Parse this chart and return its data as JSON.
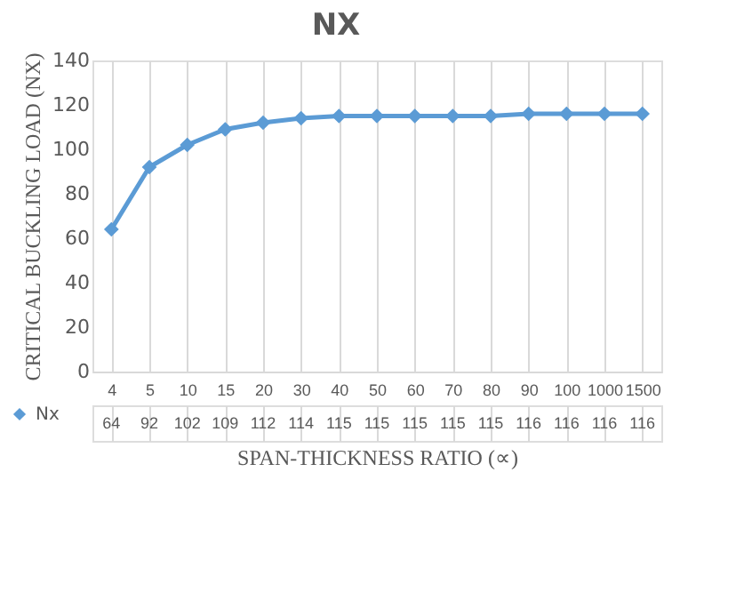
{
  "chart_data": {
    "type": "line",
    "title": "NX",
    "xlabel": "SPAN-THICKNESS RATIO (∝)",
    "ylabel": "CRITICAL BUCKLING LOAD (NX)",
    "categories": [
      "4",
      "5",
      "10",
      "15",
      "20",
      "30",
      "40",
      "50",
      "60",
      "70",
      "80",
      "90",
      "100",
      "1000",
      "1500"
    ],
    "series": [
      {
        "name": "Nx",
        "color": "#5b9bd5",
        "values": [
          64,
          92,
          102,
          109,
          112,
          114,
          115,
          115,
          115,
          115,
          115,
          116,
          116,
          116,
          116
        ]
      }
    ],
    "ylim": [
      0,
      140
    ],
    "yticks": [
      0,
      20,
      40,
      60,
      80,
      100,
      120,
      140
    ],
    "grid": "x",
    "marker": "diamond",
    "line_style": "solid",
    "data_labels": true,
    "legend": "bottom left"
  }
}
